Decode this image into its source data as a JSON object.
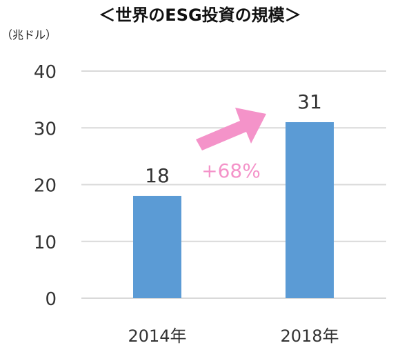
{
  "chart_data": {
    "type": "bar",
    "title": "＜世界のESG投資の規模＞",
    "unit_label": "（兆ドル）",
    "categories": [
      "2014年",
      "2018年"
    ],
    "values": [
      18,
      31
    ],
    "ylim": [
      0,
      40
    ],
    "yticks": [
      0,
      10,
      20,
      30,
      40
    ],
    "grid": true,
    "annotation": "+68%",
    "colors": {
      "bar": "#5b9bd5",
      "grid": "#d9d9d9",
      "arrow": "#f493c9",
      "text": "#333333"
    }
  }
}
